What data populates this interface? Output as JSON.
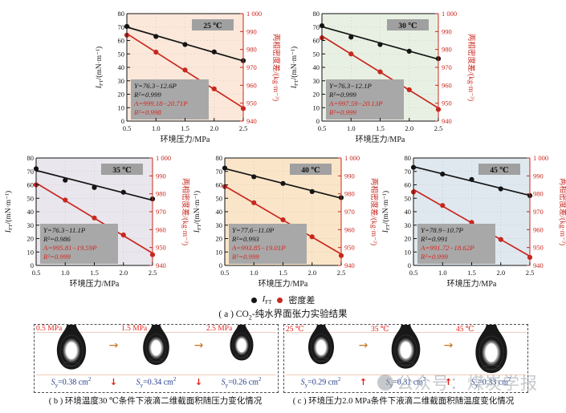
{
  "figure": {
    "legend": {
      "ift_symbol": "I",
      "ift_sub": "FT",
      "density_label": "密度差"
    },
    "caption_a": {
      "pre": "( a ) CO",
      "sub": "2",
      "rest": "-纯水界面张力实验结果"
    }
  },
  "axes": {
    "xlabel": "环境压力/MPa",
    "ylabel_left": {
      "italic": "I",
      "sub": "FT",
      "rest": "/(mN·m⁻¹)"
    },
    "ylabel_right": "两相密度差/(kg·m⁻³)",
    "x_ticks": [
      "0.5",
      "1.0",
      "1.5",
      "2.0",
      "2.5"
    ],
    "left_ticks": [
      "0",
      "10",
      "20",
      "30",
      "40",
      "50",
      "60",
      "70",
      "80"
    ],
    "right_ticks": [
      "940",
      "950",
      "960",
      "970",
      "980",
      "990",
      "1 000"
    ],
    "x_range": [
      0.5,
      2.5
    ],
    "left_range": [
      0,
      80
    ],
    "right_range": [
      940,
      1000
    ],
    "grid": "dotted"
  },
  "chart_data": [
    {
      "type": "scatter",
      "temp_label": "25 ℃",
      "bg": "#fbe8da",
      "x": [
        0.5,
        1.0,
        1.5,
        2.0,
        2.5
      ],
      "ift_points": [
        70.5,
        63.0,
        57.0,
        51.5,
        45.0
      ],
      "density_points": [
        988,
        978.5,
        968.5,
        958,
        947
      ],
      "ift_fit": {
        "eq": "Y=76.3−12.6P",
        "r2": "R²=0.999",
        "intercept": 76.3,
        "slope": -12.6
      },
      "density_fit": {
        "eq": "A=999.18−20.71P",
        "r2": "R²=0.998",
        "intercept": 999.18,
        "slope": -20.71
      }
    },
    {
      "type": "scatter",
      "temp_label": "30 ℃",
      "bg": "#e8f0e3",
      "x": [
        0.5,
        1.0,
        1.5,
        2.0,
        2.5
      ],
      "ift_points": [
        71.0,
        62.5,
        57.0,
        52.0,
        46.5
      ],
      "density_points": [
        986.5,
        977.5,
        967.5,
        957.5,
        946.5
      ],
      "ift_fit": {
        "eq": "Y=76.3−12.1P",
        "r2": "R²=0.999",
        "intercept": 76.3,
        "slope": -12.1
      },
      "density_fit": {
        "eq": "A=997.59−20.13P",
        "r2": "R²=0.999",
        "intercept": 997.59,
        "slope": -20.13
      }
    },
    {
      "type": "scatter",
      "temp_label": "35 ℃",
      "bg": "#e9e6ed",
      "x": [
        0.5,
        1.0,
        1.5,
        2.0,
        2.5
      ],
      "ift_points": [
        72.0,
        63.5,
        58.0,
        54.5,
        49.5
      ],
      "density_points": [
        985,
        976.5,
        966.5,
        957,
        946
      ],
      "ift_fit": {
        "eq": "Y=76.3−11.1P",
        "r2": "R²=0.986",
        "intercept": 76.3,
        "slope": -11.1
      },
      "density_fit": {
        "eq": "A=995.81−19.59P",
        "r2": "R²=0.999",
        "intercept": 995.81,
        "slope": -19.59
      }
    },
    {
      "type": "scatter",
      "temp_label": "40 ℃",
      "bg": "#fae5c9",
      "x": [
        0.5,
        1.0,
        1.5,
        2.0,
        2.5
      ],
      "ift_points": [
        72.5,
        66.0,
        61.0,
        55.0,
        50.5
      ],
      "density_points": [
        984,
        975,
        965.5,
        956,
        945.5
      ],
      "ift_fit": {
        "eq": "Y=77.6−11.0P",
        "r2": "R²=0.993",
        "intercept": 77.6,
        "slope": -11.0
      },
      "density_fit": {
        "eq": "A=993.85−19.01P",
        "r2": "R²=0.999",
        "intercept": 993.85,
        "slope": -19.01
      }
    },
    {
      "type": "scatter",
      "temp_label": "45 ℃",
      "bg": "#dfe8ef",
      "x": [
        0.5,
        1.0,
        1.5,
        2.0,
        2.5
      ],
      "ift_points": [
        73.0,
        68.0,
        64.0,
        57.0,
        52.0
      ],
      "density_points": [
        981,
        973.5,
        964,
        954.5,
        944.5
      ],
      "ift_fit": {
        "eq": "Y=78.9−10.7P",
        "r2": "R²=0.991",
        "intercept": 78.9,
        "slope": -10.7
      },
      "density_fit": {
        "eq": "A=991.72−18.62P",
        "r2": "R²=0.999",
        "intercept": 991.72,
        "slope": -18.62
      }
    }
  ],
  "panels": {
    "area_symbol": {
      "italic": "S",
      "sub": "y",
      "equals": "=",
      "unit": " cm",
      "sup": "2"
    },
    "h_arrow": "→",
    "b": {
      "v_arrow": "↓",
      "items": [
        {
          "cond": "0.5 MPa",
          "area": "0.38",
          "scale": 1.0
        },
        {
          "cond": "1.5 MPa",
          "area": "0.34",
          "scale": 0.9
        },
        {
          "cond": "2.5 MPa",
          "area": "0.26",
          "scale": 0.8
        }
      ],
      "caption": "( b ) 环境温度30 ℃条件下液滴二维截面积随压力变化情况"
    },
    "c": {
      "v_arrow": "↑",
      "items": [
        {
          "cond": "25 ℃",
          "area": "0.29",
          "scale": 0.88
        },
        {
          "cond": "35 ℃",
          "area": "0.31",
          "scale": 0.98
        },
        {
          "cond": "45 ℃",
          "area": "0.33",
          "scale": 1.08
        }
      ],
      "caption": "( c ) 环境压力2.0 MPa条件下液滴二维截面积随温度变化情况"
    }
  },
  "watermark": {
    "text": "公众号：煤炭学报"
  },
  "colors": {
    "ift_series": "#151515",
    "density_series": "#c8281f",
    "equation_box": "#a8a8a8",
    "temp_badge": "#a0a0a0",
    "equation_red_text": "#d4261f",
    "s_value_text": "#233d8c",
    "condition_label": "#e2251c",
    "h_arrow": "#c9731f",
    "v_arrow": "#e01b12",
    "watermark": "#8f959b"
  }
}
